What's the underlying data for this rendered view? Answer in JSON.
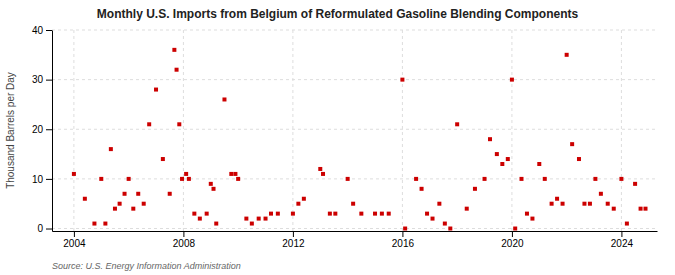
{
  "chart_data": {
    "type": "scatter",
    "title": "Monthly U.S. Imports from Belgium of Reformulated Gasoline Blending Components",
    "ylabel": "Thousand Barrels per Day",
    "source": "Source: U.S. Energy Information Administration",
    "color": "#cc0000",
    "marker": "square",
    "grid": true,
    "xlim": [
      2003.2,
      2025.3
    ],
    "ylim": [
      -0.5,
      40
    ],
    "xticks": [
      2004,
      2008,
      2012,
      2016,
      2020,
      2024
    ],
    "yticks": [
      0,
      10,
      20,
      30,
      40
    ],
    "x": [
      2004.0,
      2004.4,
      2004.75,
      2005.0,
      2005.15,
      2005.35,
      2005.5,
      2005.67,
      2005.85,
      2006.0,
      2006.17,
      2006.35,
      2006.55,
      2006.75,
      2007.0,
      2007.25,
      2007.5,
      2007.67,
      2007.75,
      2007.85,
      2007.95,
      2008.1,
      2008.2,
      2008.4,
      2008.6,
      2008.85,
      2009.0,
      2009.1,
      2009.2,
      2009.5,
      2009.75,
      2009.9,
      2010.0,
      2010.3,
      2010.5,
      2010.75,
      2011.0,
      2011.2,
      2011.45,
      2012.0,
      2012.2,
      2012.4,
      2013.0,
      2013.1,
      2013.35,
      2013.55,
      2014.0,
      2014.2,
      2014.5,
      2015.0,
      2015.25,
      2015.5,
      2016.0,
      2016.1,
      2016.5,
      2016.7,
      2016.9,
      2017.1,
      2017.35,
      2017.55,
      2017.75,
      2018.0,
      2018.35,
      2018.65,
      2019.0,
      2019.2,
      2019.45,
      2019.65,
      2019.85,
      2020.0,
      2020.12,
      2020.35,
      2020.55,
      2020.75,
      2021.0,
      2021.2,
      2021.45,
      2021.65,
      2021.85,
      2022.0,
      2022.2,
      2022.45,
      2022.65,
      2022.85,
      2023.05,
      2023.25,
      2023.5,
      2023.72,
      2024.0,
      2024.2,
      2024.5,
      2024.7,
      2024.88
    ],
    "values": [
      11,
      6,
      1,
      10,
      1,
      16,
      4,
      5,
      7,
      10,
      4,
      7,
      5,
      21,
      28,
      14,
      7,
      36,
      32,
      21,
      10,
      11,
      10,
      3,
      2,
      3,
      9,
      8,
      1,
      26,
      11,
      11,
      10,
      2,
      1,
      2,
      2,
      3,
      3,
      3,
      5,
      6,
      12,
      11,
      3,
      3,
      10,
      5,
      3,
      3,
      3,
      3,
      30,
      0,
      10,
      8,
      3,
      2,
      5,
      1,
      0,
      21,
      4,
      8,
      10,
      18,
      15,
      13,
      14,
      30,
      0,
      10,
      3,
      2,
      13,
      10,
      5,
      6,
      5,
      35,
      17,
      14,
      5,
      5,
      10,
      7,
      5,
      4,
      10,
      1,
      9,
      4,
      4
    ]
  }
}
